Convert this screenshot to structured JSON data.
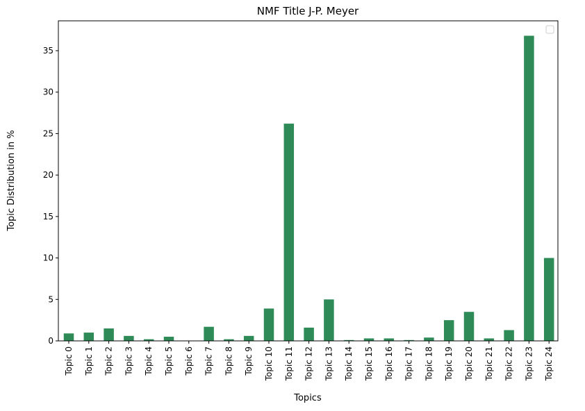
{
  "chart_data": {
    "type": "bar",
    "title": "NMF Title J-P. Meyer",
    "xlabel": "Topics",
    "ylabel": "Topic Distribution in %",
    "categories": [
      "Topic 0",
      "Topic 1",
      "Topic 2",
      "Topic 3",
      "Topic 4",
      "Topic 5",
      "Topic 6",
      "Topic 7",
      "Topic 8",
      "Topic 9",
      "Topic 10",
      "Topic 11",
      "Topic 12",
      "Topic 13",
      "Topic 14",
      "Topic 15",
      "Topic 16",
      "Topic 17",
      "Topic 18",
      "Topic 19",
      "Topic 20",
      "Topic 21",
      "Topic 22",
      "Topic 23",
      "Topic 24"
    ],
    "values": [
      0.9,
      1.0,
      1.5,
      0.6,
      0.2,
      0.5,
      0.0,
      1.7,
      0.2,
      0.6,
      3.9,
      26.2,
      1.6,
      5.0,
      0.1,
      0.3,
      0.3,
      0.1,
      0.4,
      2.5,
      3.5,
      0.3,
      1.3,
      36.8,
      10.0
    ],
    "yticks": [
      0,
      5,
      10,
      15,
      20,
      25,
      30,
      35
    ],
    "ylim": [
      0,
      38.6
    ],
    "bar_color": "#2e8b57",
    "grid": false,
    "legend": "top-right (empty)"
  }
}
